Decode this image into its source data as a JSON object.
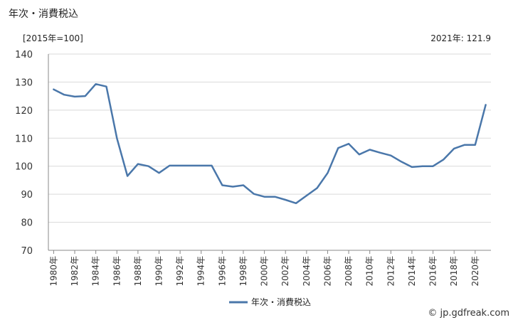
{
  "chart_data": {
    "type": "line",
    "title": "年次・消費税込",
    "unit_label": "[2015年=100]",
    "latest_note": "2021年: 121.9",
    "ylim": [
      70,
      140
    ],
    "yticks": [
      "70",
      "80",
      "90",
      "100",
      "110",
      "120",
      "130",
      "140"
    ],
    "grid": true,
    "legend_position": "bottom",
    "x": [
      1980,
      1981,
      1982,
      1983,
      1984,
      1985,
      1986,
      1987,
      1988,
      1989,
      1990,
      1991,
      1992,
      1993,
      1994,
      1995,
      1996,
      1997,
      1998,
      1999,
      2000,
      2001,
      2002,
      2003,
      2004,
      2005,
      2006,
      2007,
      2008,
      2009,
      2010,
      2011,
      2012,
      2013,
      2014,
      2015,
      2016,
      2017,
      2018,
      2019,
      2020,
      2021
    ],
    "xtick_labels": [
      "1980年",
      "1982年",
      "1984年",
      "1986年",
      "1988年",
      "1990年",
      "1992年",
      "1994年",
      "1996年",
      "1998年",
      "2000年",
      "2002年",
      "2004年",
      "2006年",
      "2008年",
      "2010年",
      "2012年",
      "2014年",
      "2016年",
      "2018年",
      "2020年"
    ],
    "series": [
      {
        "name": "年次・消費税込",
        "color": "#4a77aa",
        "values": [
          127.4,
          125.5,
          124.8,
          125.0,
          129.3,
          128.4,
          110.0,
          96.5,
          100.8,
          100.0,
          97.6,
          100.2,
          100.2,
          100.2,
          100.2,
          100.2,
          93.2,
          92.7,
          93.2,
          90.1,
          89.1,
          89.1,
          88.0,
          86.8,
          89.5,
          92.2,
          97.6,
          106.5,
          108.0,
          104.2,
          105.9,
          104.8,
          103.8,
          101.6,
          99.7,
          100.0,
          100.0,
          102.4,
          106.3,
          107.6,
          107.6,
          121.9
        ]
      }
    ],
    "credit": "© jp.gdfreak.com"
  }
}
